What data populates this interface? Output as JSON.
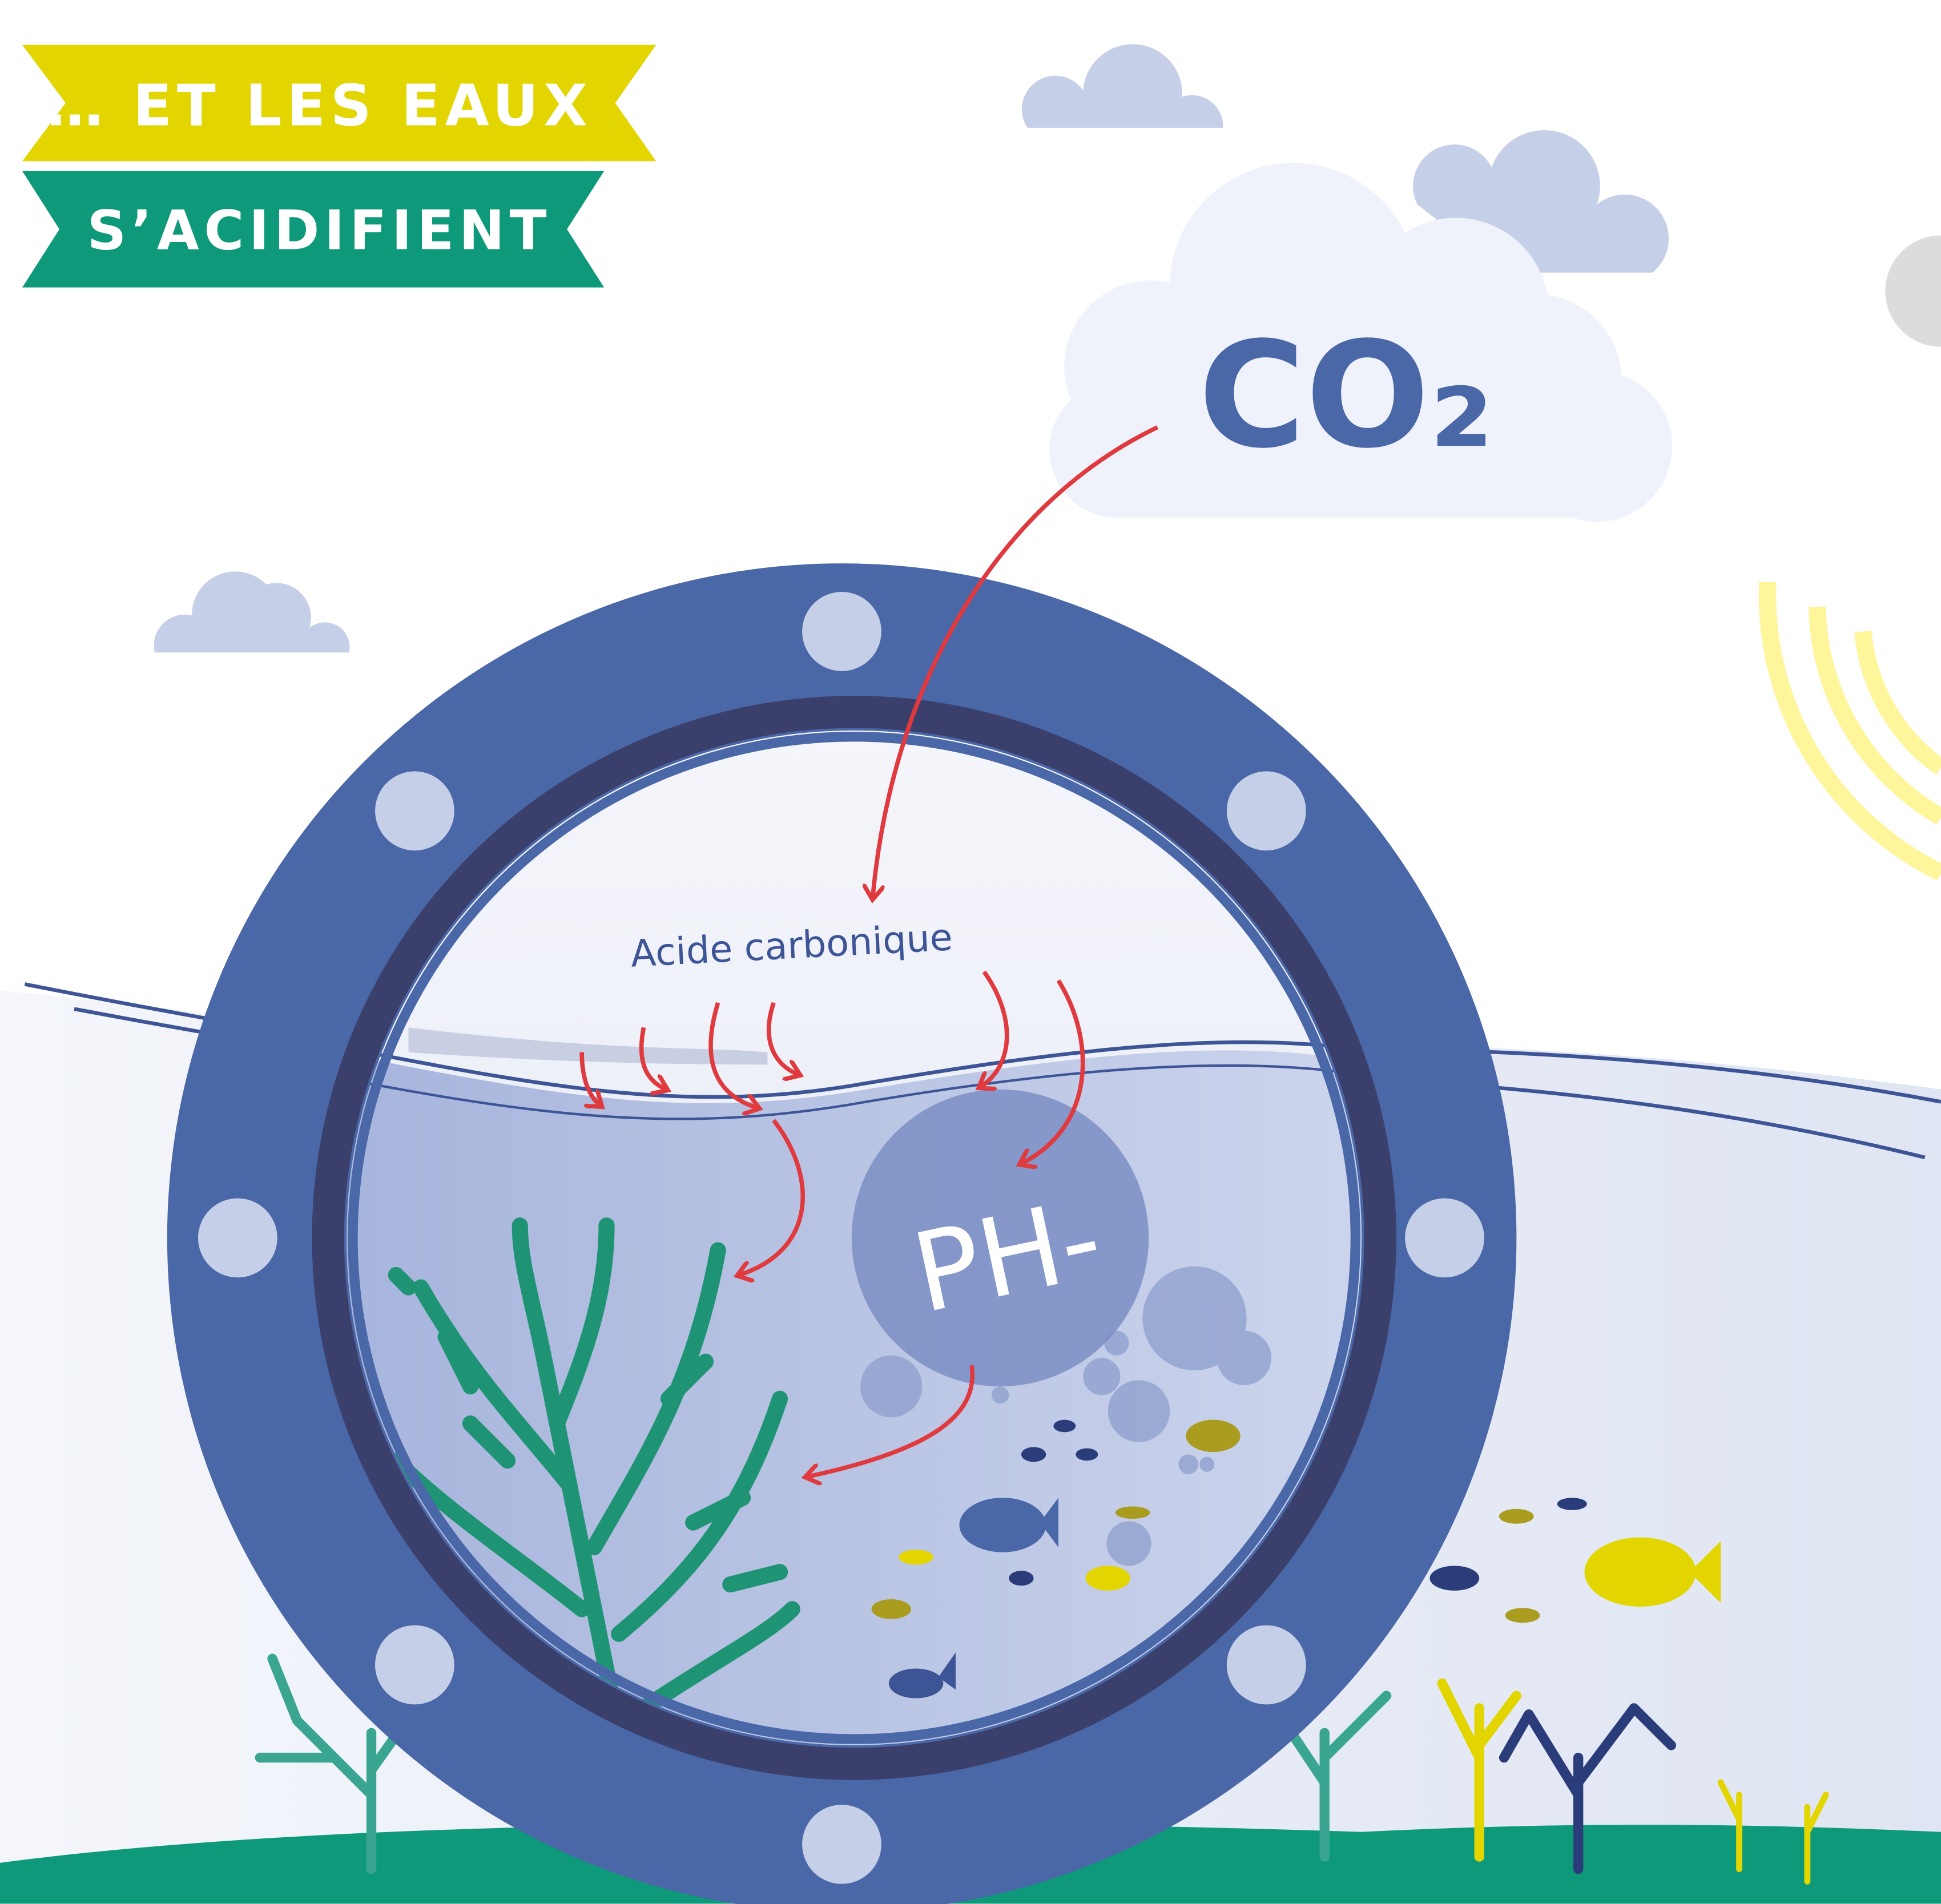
{
  "banner": {
    "line1": "… ET LES EAUX",
    "line2": "S’ACIDIFIENT"
  },
  "cloud": {
    "label": "CO₂"
  },
  "porthole": {
    "annotation": "Acide carbonique",
    "badge": "PH-"
  }
}
